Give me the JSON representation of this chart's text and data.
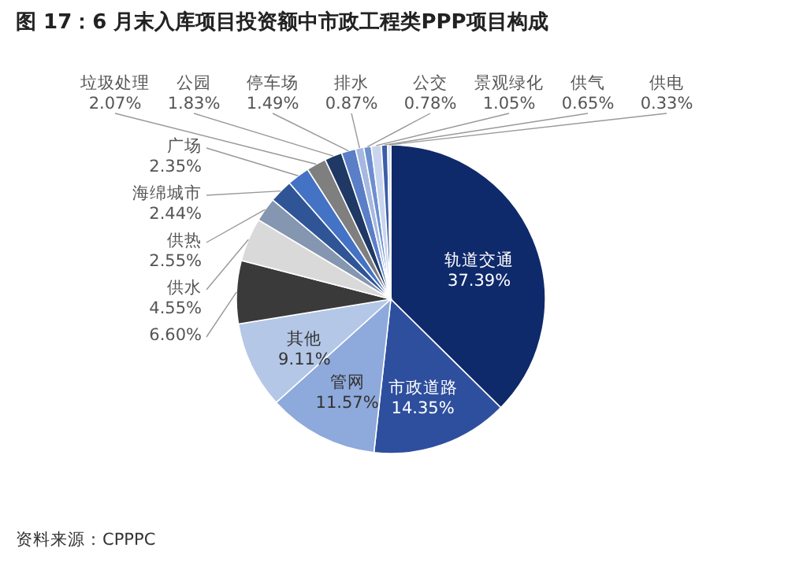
{
  "chart_data": {
    "type": "pie",
    "title": "图 17：6 月末入库项目投资额中市政工程类PPP项目构成",
    "categories": [
      "轨道交通",
      "市政道路",
      "管网",
      "其他",
      null,
      "供水",
      "供热",
      "海绵城市",
      "广场",
      "垃圾处理",
      "公园",
      "停车场",
      "排水",
      "公交",
      "景观绿化",
      "供气",
      "供电"
    ],
    "values": [
      37.39,
      14.35,
      11.57,
      9.11,
      6.6,
      4.55,
      2.55,
      2.44,
      2.35,
      2.07,
      1.83,
      1.49,
      0.87,
      0.78,
      1.05,
      0.65,
      0.33
    ],
    "value_labels": [
      "37.39%",
      "14.35%",
      "11.57%",
      "9.11%",
      "6.60%",
      "4.55%",
      "2.55%",
      "2.44%",
      "2.35%",
      "2.07%",
      "1.83%",
      "1.49%",
      "0.87%",
      "0.78%",
      "1.05%",
      "0.65%",
      "0.33%"
    ],
    "colors": [
      "#0f2a6b",
      "#2e4f9e",
      "#8ea9db",
      "#b4c7e7",
      "#3a3a3a",
      "#d9d9d9",
      "#8496b0",
      "#2f5597",
      "#4472c4",
      "#7f7f7f",
      "#1f3864",
      "#5b7fc7",
      "#a5b8e0",
      "#6d8fd0",
      "#c9d5ee",
      "#3c5ea8",
      "#dae3f3"
    ],
    "annotations": [
      "资料来源：CPPPC"
    ]
  }
}
